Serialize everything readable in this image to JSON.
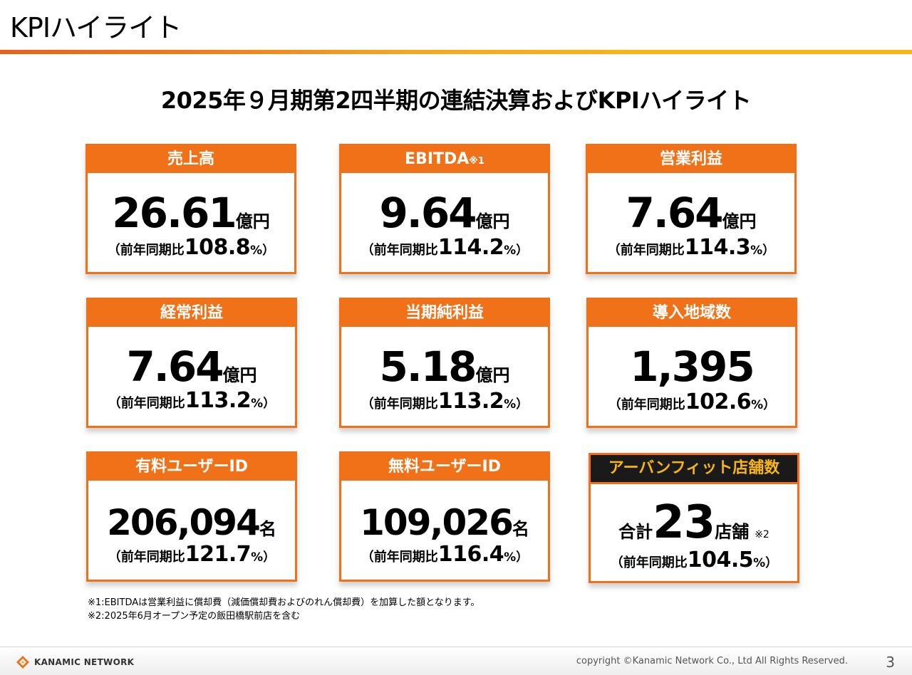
{
  "header": {
    "title": "KPIハイライト"
  },
  "main_title": "2025年９月期第2四半期の連結決算およびKPIハイライト",
  "cards": [
    {
      "label": "売上高",
      "label_sup": "",
      "value": "26.61",
      "unit": "億円",
      "yoy_label": "（前年同期比",
      "yoy_value": "108.8",
      "yoy_suffix": "%）"
    },
    {
      "label": "EBITDA",
      "label_sup": "※1",
      "value": "9.64",
      "unit": "億円",
      "yoy_label": "（前年同期比",
      "yoy_value": "114.2",
      "yoy_suffix": "%）"
    },
    {
      "label": "営業利益",
      "label_sup": "",
      "value": "7.64",
      "unit": "億円",
      "yoy_label": "（前年同期比",
      "yoy_value": "114.3",
      "yoy_suffix": "%）"
    },
    {
      "label": "経常利益",
      "label_sup": "",
      "value": "7.64",
      "unit": "億円",
      "yoy_label": "（前年同期比",
      "yoy_value": "113.2",
      "yoy_suffix": "%）"
    },
    {
      "label": "当期純利益",
      "label_sup": "",
      "value": "5.18",
      "unit": "億円",
      "yoy_label": "（前年同期比",
      "yoy_value": "113.2",
      "yoy_suffix": "%）"
    },
    {
      "label": "導入地域数",
      "label_sup": "",
      "value": "1,395",
      "unit": "",
      "yoy_label": "（前年同期比",
      "yoy_value": "102.6",
      "yoy_suffix": "%）"
    },
    {
      "label": "有料ユーザーID",
      "label_sup": "",
      "value": "206,094",
      "unit": "名",
      "yoy_label": "（前年同期比",
      "yoy_value": "121.7",
      "yoy_suffix": "%）"
    },
    {
      "label": "無料ユーザーID",
      "label_sup": "",
      "value": "109,026",
      "unit": "名",
      "yoy_label": "（前年同期比",
      "yoy_value": "116.4",
      "yoy_suffix": "%）"
    }
  ],
  "special_card": {
    "label": "アーバンフィット店舗数",
    "prefix": "合計",
    "value": "23",
    "unit": "店舗",
    "note_mark": "※2",
    "yoy_label": "（前年同期比",
    "yoy_value": "104.5",
    "yoy_suffix": "%）"
  },
  "notes": [
    "※1:EBITDAは営業利益に償却費（減価償却費およびのれん償却費）を加算した額となります。",
    "※2:2025年6月オープン予定の飯田橋駅前店を含む"
  ],
  "footer": {
    "logo_text": "KANAMIC NETWORK",
    "copyright": "copyright ©Kanamic Network Co., Ltd All Rights Reserved.",
    "page_number": "3"
  },
  "colors": {
    "accent": "#f07118",
    "special_head_bg": "#1a1a1a",
    "special_head_text": "#f7b514"
  }
}
